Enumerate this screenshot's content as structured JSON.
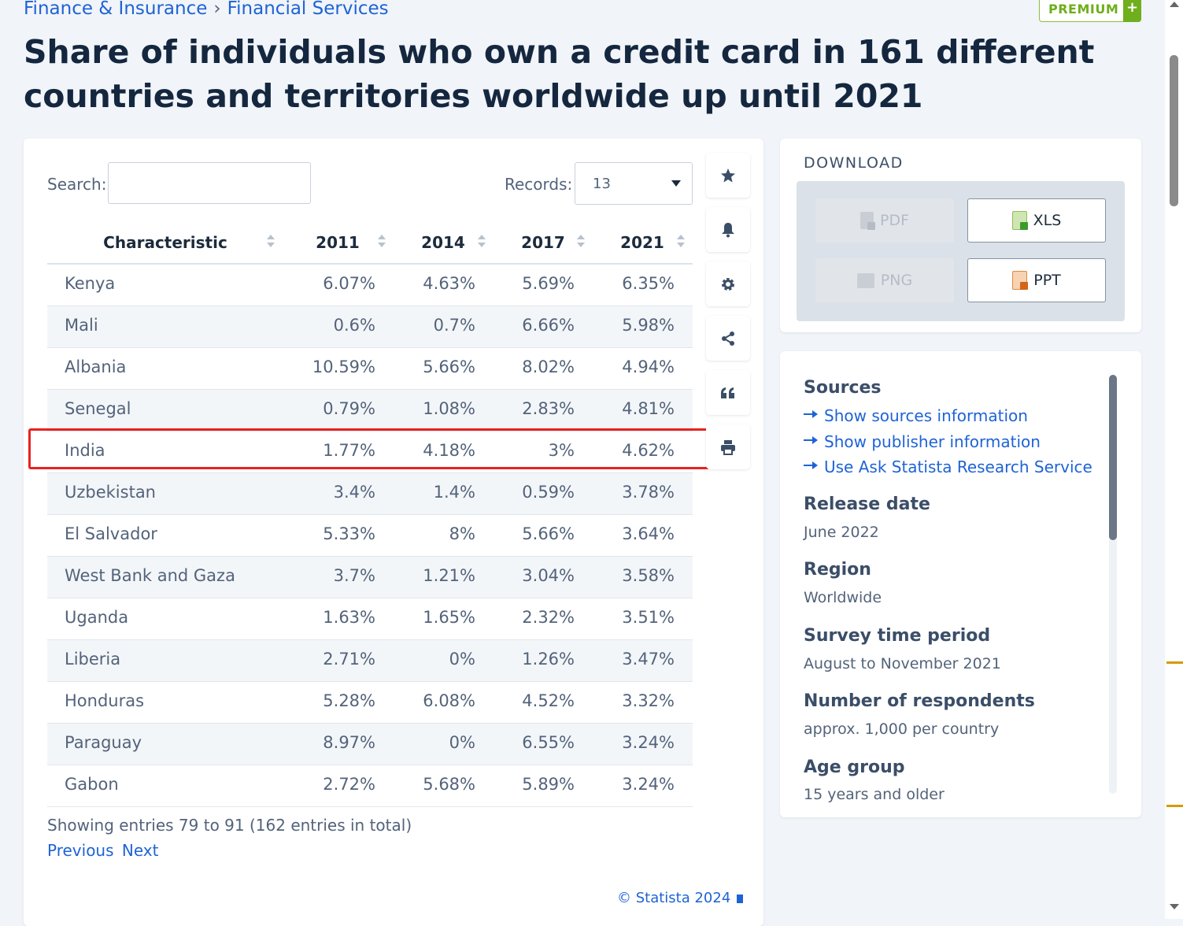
{
  "breadcrumb": {
    "parent": "Finance & Insurance",
    "separator": "›",
    "current": "Financial Services"
  },
  "premium_label": "PREMIUM",
  "premium_plus": "+",
  "title": "Share of individuals who own a credit card in 161 different countries and territories worldwide up until 2021",
  "table_controls": {
    "search_label": "Search:",
    "search_value": "",
    "records_label": "Records:",
    "records_value": "13"
  },
  "table": {
    "columns": [
      "Characteristic",
      "2011",
      "2014",
      "2017",
      "2021"
    ],
    "rows": [
      [
        "Kenya",
        "6.07%",
        "4.63%",
        "5.69%",
        "6.35%"
      ],
      [
        "Mali",
        "0.6%",
        "0.7%",
        "6.66%",
        "5.98%"
      ],
      [
        "Albania",
        "10.59%",
        "5.66%",
        "8.02%",
        "4.94%"
      ],
      [
        "Senegal",
        "0.79%",
        "1.08%",
        "2.83%",
        "4.81%"
      ],
      [
        "India",
        "1.77%",
        "4.18%",
        "3%",
        "4.62%"
      ],
      [
        "Uzbekistan",
        "3.4%",
        "1.4%",
        "0.59%",
        "3.78%"
      ],
      [
        "El Salvador",
        "5.33%",
        "8%",
        "5.66%",
        "3.64%"
      ],
      [
        "West Bank and Gaza",
        "3.7%",
        "1.21%",
        "3.04%",
        "3.58%"
      ],
      [
        "Uganda",
        "1.63%",
        "1.65%",
        "2.32%",
        "3.51%"
      ],
      [
        "Liberia",
        "2.71%",
        "0%",
        "1.26%",
        "3.47%"
      ],
      [
        "Honduras",
        "5.28%",
        "6.08%",
        "4.52%",
        "3.32%"
      ],
      [
        "Paraguay",
        "8.97%",
        "0%",
        "6.55%",
        "3.24%"
      ],
      [
        "Gabon",
        "2.72%",
        "5.68%",
        "5.89%",
        "3.24%"
      ]
    ],
    "highlighted_row": "India"
  },
  "pagination": {
    "info": "Showing entries 79 to 91 (162 entries in total)",
    "previous": "Previous",
    "next": "Next"
  },
  "copyright": "© Statista 2024",
  "tools": [
    "star-icon",
    "bell-icon",
    "gear-icon",
    "share-icon",
    "quote-icon",
    "print-icon"
  ],
  "download": {
    "title": "DOWNLOAD",
    "buttons": [
      {
        "label": "PDF",
        "enabled": false
      },
      {
        "label": "XLS",
        "enabled": true
      },
      {
        "label": "PNG",
        "enabled": false
      },
      {
        "label": "PPT",
        "enabled": true
      }
    ]
  },
  "sources": {
    "heading": "Sources",
    "links": [
      "Show sources information",
      "Show publisher information",
      "Use Ask Statista Research Service"
    ],
    "release_date_label": "Release date",
    "release_date": "June 2022",
    "region_label": "Region",
    "region": "Worldwide",
    "survey_label": "Survey time period",
    "survey": "August to November 2021",
    "respondents_label": "Number of respondents",
    "respondents": "approx. 1,000 per country",
    "age_label": "Age group",
    "age": "15 years and older"
  },
  "colors": {
    "accent": "#1e63d6",
    "highlight": "#e8221f",
    "premium": "#6fae1c",
    "heading": "#14273f"
  }
}
